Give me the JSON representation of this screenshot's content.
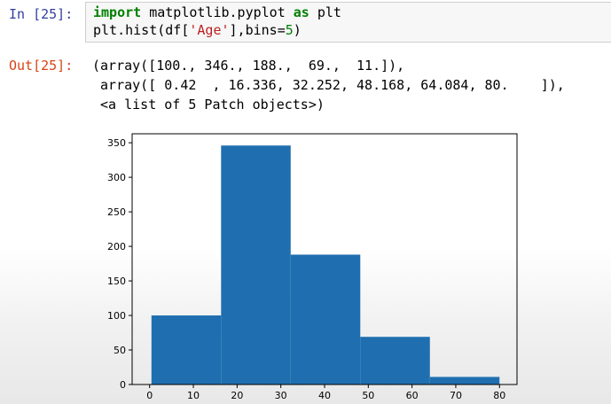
{
  "cell_in": {
    "prompt": "In [25]:",
    "code_line1": {
      "kw1": "import",
      "mid1": " matplotlib.pyplot ",
      "kw2": "as",
      "end1": " plt"
    },
    "code_line2": {
      "pre": "plt.hist(df[",
      "str": "'Age'",
      "mid": "],bins=",
      "num": "5",
      "end": ")"
    }
  },
  "cell_out": {
    "prompt": "Out[25]:",
    "lines": [
      "(array([100., 346., 188.,  69.,  11.]),",
      " array([ 0.42  , 16.336, 32.252, 48.168, 64.084, 80.    ]),",
      " <a list of 5 Patch objects>)"
    ]
  },
  "colors": {
    "bar": "#1f6fb0",
    "in_prompt": "#303f9f",
    "out_prompt": "#d84315"
  },
  "chart_data": {
    "type": "bar",
    "title": "",
    "xlabel": "",
    "ylabel": "",
    "bin_edges": [
      0.42,
      16.336,
      32.252,
      48.168,
      64.084,
      80.0
    ],
    "values": [
      100,
      346,
      188,
      69,
      11
    ],
    "xlim": [
      -4,
      84
    ],
    "ylim": [
      0,
      363
    ],
    "xticks": [
      0,
      10,
      20,
      30,
      40,
      50,
      60,
      70,
      80
    ],
    "yticks": [
      0,
      50,
      100,
      150,
      200,
      250,
      300,
      350
    ],
    "grid": false
  }
}
